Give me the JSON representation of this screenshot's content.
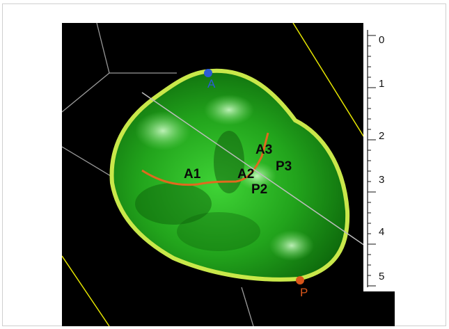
{
  "scene": {
    "colors": {
      "background": "#000000",
      "valve": "#35b82a",
      "annulus": "#c9e84a",
      "coaptation": "#e06a1e",
      "frame_lines": "#bfbfbf",
      "yellow_lines": "#e6e600",
      "anterior_marker": "#2b5bd6",
      "posterior_marker": "#d9561a"
    },
    "markers": [
      {
        "id": "anterior",
        "label": "A"
      },
      {
        "id": "posterior",
        "label": "P"
      }
    ],
    "leaflet_labels": [
      {
        "id": "a1",
        "label": "A1"
      },
      {
        "id": "a2",
        "label": "A2"
      },
      {
        "id": "a3",
        "label": "A3"
      },
      {
        "id": "p2",
        "label": "P2"
      },
      {
        "id": "p3",
        "label": "P3"
      }
    ],
    "ruler": {
      "ticks": [
        "0",
        "1",
        "2",
        "3",
        "4",
        "5"
      ]
    }
  }
}
